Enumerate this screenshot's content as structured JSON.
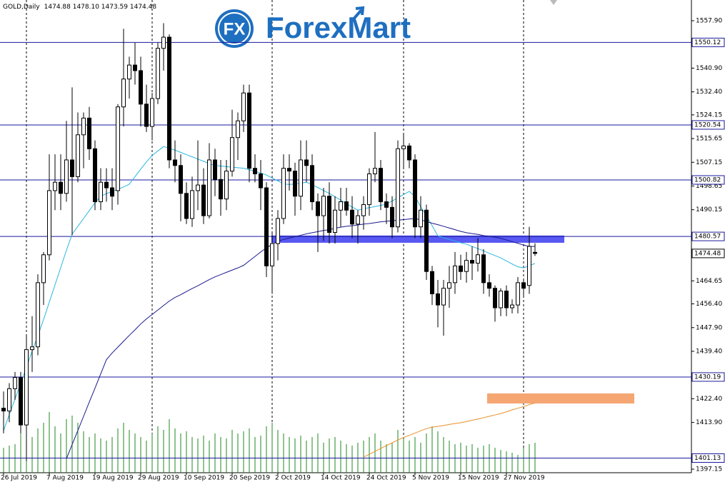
{
  "chart_data": {
    "type": "candlestick",
    "symbol": "GOLD,Daily",
    "ohlc_text": "1474.88 1478.10 1473.59 1474.48",
    "watermark_icon": "FX",
    "watermark": "ForexMart",
    "ylim": [
      1395.88,
      1565.32
    ],
    "yticks": [
      {
        "value": 1557.9,
        "label": "1557.90"
      },
      {
        "value": 1540.9,
        "label": "1540.90"
      },
      {
        "value": 1532.4,
        "label": "1532.40"
      },
      {
        "value": 1524.15,
        "label": "1524.15"
      },
      {
        "value": 1515.65,
        "label": "1515.65"
      },
      {
        "value": 1507.15,
        "label": "1507.15"
      },
      {
        "value": 1498.65,
        "label": "1498.65"
      },
      {
        "value": 1490.15,
        "label": "1490.15"
      },
      {
        "value": 1464.65,
        "label": "1464.65"
      },
      {
        "value": 1456.4,
        "label": "1456.40"
      },
      {
        "value": 1447.9,
        "label": "1447.90"
      },
      {
        "value": 1439.4,
        "label": "1439.40"
      },
      {
        "value": 1422.4,
        "label": "1422.40"
      },
      {
        "value": 1413.9,
        "label": "1413.90"
      },
      {
        "value": 1397.15,
        "label": "1397.15"
      }
    ],
    "categories": [
      "26 Jul 2019",
      null,
      null,
      null,
      null,
      null,
      null,
      null,
      "7 Aug 2019",
      null,
      null,
      null,
      null,
      null,
      null,
      null,
      "19 Aug 2019",
      null,
      null,
      null,
      null,
      null,
      null,
      null,
      "29 Aug 2019",
      null,
      null,
      null,
      null,
      null,
      null,
      null,
      "10 Sep 2019",
      null,
      null,
      null,
      null,
      null,
      null,
      null,
      "20 Sep 2019",
      null,
      null,
      null,
      null,
      null,
      null,
      null,
      "2 Oct 2019",
      null,
      null,
      null,
      null,
      null,
      null,
      null,
      "14 Oct 2019",
      null,
      null,
      null,
      null,
      null,
      null,
      null,
      "24 Oct 2019",
      null,
      null,
      null,
      null,
      null,
      null,
      null,
      "5 Nov 2019",
      null,
      null,
      null,
      null,
      null,
      null,
      null,
      "15 Nov 2019",
      null,
      null,
      null,
      null,
      null,
      null,
      null,
      "27 Nov 2019",
      null,
      null,
      null,
      null,
      null
    ],
    "open": [
      1419,
      1418,
      1426,
      1430,
      1413,
      1440,
      1441,
      1464,
      1474,
      1497,
      1500,
      1496,
      1508,
      1502,
      1517,
      1523,
      1512,
      1493,
      1500,
      1498,
      1497,
      1527,
      1537,
      1542,
      1540,
      1528,
      1520,
      1530,
      1548,
      1552,
      1508,
      1506,
      1496,
      1487,
      1497,
      1499,
      1488,
      1508,
      1501,
      1494,
      1504,
      1516,
      1522,
      1532,
      1505,
      1503,
      1498,
      1470,
      1478,
      1487,
      1505,
      1504,
      1495,
      1508,
      1506,
      1493,
      1488,
      1495,
      1482,
      1490,
      1493,
      1490,
      1485,
      1488,
      1492,
      1503,
      1505,
      1493,
      1491,
      1484,
      1512,
      1513,
      1508,
      1484,
      1490,
      1468,
      1460,
      1456,
      1462,
      1464,
      1470,
      1468,
      1472,
      1471,
      1474,
      1464,
      1462,
      1455,
      1461,
      1455,
      1456,
      1464,
      1463,
      1474.88
    ],
    "high": [
      1425,
      1428,
      1432,
      1432,
      1445,
      1452,
      1467,
      1475,
      1510,
      1510,
      1510,
      1522,
      1534,
      1525,
      1525,
      1527,
      1515,
      1505,
      1505,
      1505,
      1528,
      1555,
      1545,
      1550,
      1545,
      1535,
      1532,
      1550,
      1557,
      1553,
      1515,
      1510,
      1500,
      1502,
      1515,
      1505,
      1514,
      1512,
      1508,
      1508,
      1526,
      1525,
      1535,
      1535,
      1510,
      1508,
      1500,
      1482,
      1490,
      1510,
      1510,
      1507,
      1515,
      1515,
      1510,
      1496,
      1498,
      1500,
      1495,
      1498,
      1498,
      1495,
      1490,
      1495,
      1505,
      1518,
      1508,
      1496,
      1495,
      1515,
      1517,
      1514,
      1510,
      1495,
      1492,
      1470,
      1465,
      1465,
      1470,
      1475,
      1474,
      1475,
      1477,
      1480,
      1476,
      1467,
      1463,
      1462,
      1463,
      1458,
      1466,
      1465,
      1484,
      1478.1
    ],
    "low": [
      1410,
      1414,
      1422,
      1410,
      1400,
      1432,
      1438,
      1456,
      1472,
      1490,
      1490,
      1493,
      1481,
      1500,
      1505,
      1508,
      1490,
      1490,
      1493,
      1490,
      1492,
      1520,
      1530,
      1535,
      1520,
      1518,
      1515,
      1528,
      1540,
      1505,
      1500,
      1486,
      1485,
      1484,
      1490,
      1485,
      1487,
      1495,
      1488,
      1490,
      1502,
      1508,
      1518,
      1500,
      1500,
      1490,
      1466,
      1460,
      1472,
      1485,
      1497,
      1488,
      1490,
      1500,
      1490,
      1475,
      1479,
      1478,
      1478,
      1484,
      1488,
      1480,
      1478,
      1483,
      1488,
      1500,
      1490,
      1485,
      1480,
      1482,
      1505,
      1505,
      1480,
      1480,
      1465,
      1456,
      1448,
      1445,
      1455,
      1460,
      1465,
      1464,
      1465,
      1468,
      1460,
      1459,
      1450,
      1452,
      1452,
      1453,
      1453,
      1459,
      1460,
      1473.59
    ],
    "close": [
      1418,
      1426,
      1430,
      1413,
      1440,
      1441,
      1464,
      1474,
      1497,
      1500,
      1496,
      1508,
      1502,
      1517,
      1523,
      1512,
      1493,
      1500,
      1498,
      1495,
      1527,
      1537,
      1542,
      1540,
      1528,
      1520,
      1530,
      1548,
      1552,
      1508,
      1506,
      1496,
      1487,
      1497,
      1499,
      1488,
      1508,
      1501,
      1494,
      1504,
      1516,
      1522,
      1532,
      1505,
      1503,
      1498,
      1470,
      1478,
      1487,
      1505,
      1504,
      1495,
      1508,
      1506,
      1493,
      1488,
      1495,
      1482,
      1490,
      1493,
      1490,
      1485,
      1488,
      1492,
      1503,
      1505,
      1493,
      1491,
      1484,
      1512,
      1513,
      1508,
      1484,
      1490,
      1468,
      1460,
      1456,
      1462,
      1464,
      1470,
      1468,
      1472,
      1471,
      1474,
      1464,
      1462,
      1455,
      1461,
      1455,
      1456,
      1464,
      1462,
      1477,
      1474.48
    ],
    "volume": [
      35,
      38,
      40,
      55,
      60,
      50,
      62,
      70,
      85,
      65,
      55,
      75,
      80,
      70,
      58,
      50,
      55,
      48,
      45,
      50,
      62,
      70,
      60,
      55,
      50,
      45,
      55,
      65,
      60,
      75,
      62,
      55,
      58,
      50,
      48,
      52,
      45,
      55,
      50,
      48,
      60,
      55,
      58,
      62,
      50,
      52,
      65,
      70,
      60,
      55,
      50,
      48,
      52,
      45,
      50,
      55,
      42,
      48,
      50,
      45,
      40,
      38,
      42,
      45,
      50,
      55,
      45,
      40,
      42,
      60,
      48,
      45,
      50,
      42,
      55,
      65,
      58,
      50,
      45,
      40,
      42,
      38,
      40,
      35,
      38,
      40,
      35,
      32,
      30,
      28,
      25,
      35,
      40,
      42
    ],
    "volume_color": "#1f8a1f",
    "lines": [
      {
        "color": "#2bb7e0",
        "values": [
          1411,
          1416.7,
          1422.3,
          1428.0,
          1433.7,
          1439.4,
          1445.0,
          1450.8,
          1457.0,
          1463.2,
          1469.4,
          1475.6,
          1481.4,
          1484.2,
          1487.0,
          1489.8,
          1492.6,
          1495.0,
          1495.9,
          1496.7,
          1497.5,
          1498.3,
          1499.3,
          1502.0,
          1504.7,
          1507.3,
          1509.6,
          1511.2,
          1512.8,
          1512.2,
          1511.5,
          1510.7,
          1509.9,
          1509.1,
          1508.3,
          1507.5,
          1506.7,
          1506.0,
          1505.8,
          1505.6,
          1505.4,
          1505.2,
          1505.0,
          1504.5,
          1503.9,
          1503.3,
          1502.6,
          1501.5,
          1500.5,
          1499.4,
          1499.2,
          1499.4,
          1499.7,
          1500.0,
          1499.1,
          1498.1,
          1497.0,
          1496.0,
          1494.8,
          1493.6,
          1492.3,
          1491.1,
          1490.0,
          1490.5,
          1490.9,
          1491.3,
          1491.7,
          1492.1,
          1493.3,
          1494.4,
          1495.6,
          1496.7,
          1494.9,
          1491.2,
          1488.0,
          1484.4,
          1480.8,
          1480.1,
          1479.5,
          1478.9,
          1478.3,
          1477.8,
          1477.0,
          1476.2,
          1475.4,
          1474.5,
          1473.7,
          1472.9,
          1471.8,
          1470.7,
          1469.7,
          1469.3,
          1470.1,
          1470.9
        ]
      },
      {
        "color": "#1a1a8c",
        "values": [
          null,
          null,
          null,
          null,
          null,
          null,
          null,
          null,
          null,
          null,
          null,
          1400.9,
          1406.0,
          1411.0,
          1416.1,
          1421.2,
          1426.2,
          1431.3,
          1436.4,
          1438.8,
          1440.9,
          1443.0,
          1445.1,
          1447.1,
          1449.2,
          1451.0,
          1452.6,
          1454.2,
          1455.8,
          1457.4,
          1458.7,
          1459.7,
          1460.8,
          1461.9,
          1462.9,
          1464.0,
          1465.1,
          1466.1,
          1466.9,
          1467.7,
          1468.5,
          1469.3,
          1470.2,
          1471.8,
          1473.4,
          1475.0,
          1476.5,
          1477.7,
          1478.9,
          1479.5,
          1480.0,
          1480.5,
          1481.0,
          1481.5,
          1481.9,
          1482.3,
          1482.7,
          1483.0,
          1483.5,
          1483.9,
          1484.2,
          1484.4,
          1484.7,
          1485.0,
          1485.2,
          1485.5,
          1485.8,
          1486.0,
          1486.2,
          1486.4,
          1486.6,
          1486.8,
          1487.0,
          1486.5,
          1485.9,
          1485.3,
          1484.8,
          1484.2,
          1483.6,
          1483.0,
          1482.4,
          1481.9,
          1481.6,
          1481.3,
          1480.9,
          1480.6,
          1480.3,
          1479.9,
          1479.3,
          1478.7,
          1478.1,
          1477.5,
          1477.0,
          1477.0
        ]
      },
      {
        "color": "#e8902a",
        "values": [
          null,
          null,
          null,
          null,
          null,
          null,
          null,
          null,
          null,
          null,
          null,
          null,
          null,
          null,
          null,
          null,
          null,
          null,
          null,
          null,
          null,
          null,
          null,
          null,
          null,
          null,
          null,
          null,
          null,
          null,
          null,
          null,
          null,
          null,
          null,
          null,
          null,
          null,
          null,
          null,
          null,
          null,
          null,
          null,
          null,
          null,
          null,
          null,
          null,
          null,
          null,
          null,
          null,
          null,
          null,
          null,
          null,
          null,
          null,
          null,
          null,
          null,
          null,
          1401.5,
          1402.5,
          1403.5,
          1404.6,
          1405.6,
          1406.6,
          1407.6,
          1408.5,
          1409.3,
          1410.1,
          1410.9,
          1411.7,
          1412.2,
          1412.5,
          1412.8,
          1413.2,
          1413.5,
          1413.8,
          1414.2,
          1414.7,
          1415.1,
          1415.6,
          1416.1,
          1416.6,
          1417.1,
          1417.7,
          1418.4,
          1419.0,
          1419.6,
          1420.3,
          1420.9
        ]
      }
    ],
    "levels": [
      {
        "value": 1550.12,
        "color": "#1a1a9c"
      },
      {
        "value": 1520.54,
        "color": "#1a1a9c"
      },
      {
        "value": 1500.82,
        "color": "#1a1a9c"
      },
      {
        "value": 1480.57,
        "color": "#1a1a9c"
      },
      {
        "value": 1430.19,
        "color": "#1a1a9c"
      },
      {
        "value": 1401.13,
        "color": "#1a1a9c"
      }
    ],
    "zones": [
      {
        "from": 1478.3,
        "to": 1480.9,
        "color": "#5858f2"
      },
      {
        "from": 1420.7,
        "to": 1424.3,
        "color": "#f5a672"
      }
    ]
  }
}
